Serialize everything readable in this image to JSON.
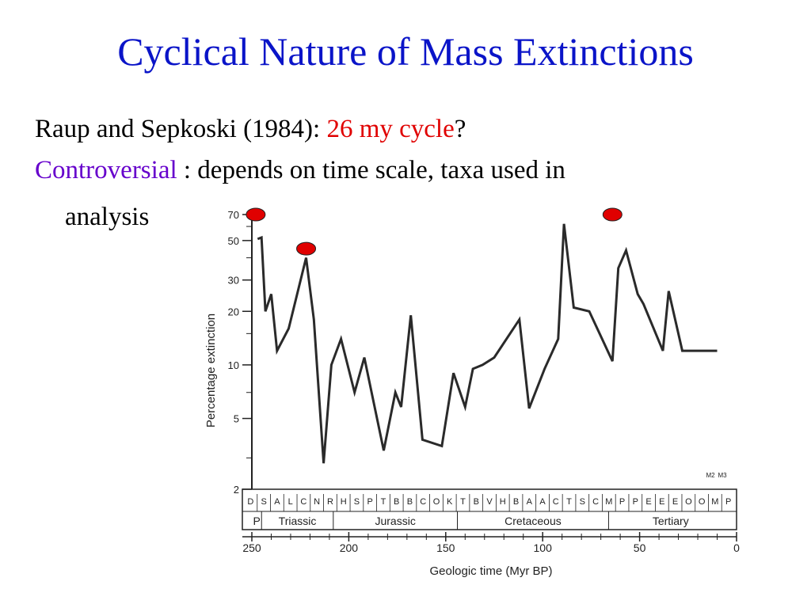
{
  "slide": {
    "title": "Cyclical Nature of Mass Extinctions",
    "line1_prefix": "Raup and Sepkoski (1984): ",
    "line1_highlight": "26 my cycle",
    "line1_suffix": "?",
    "line2_highlight": "Controversial",
    "line2_rest": " : depends on time scale, taxa used in",
    "line3": "analysis"
  },
  "colors": {
    "title": "#0a14c8",
    "highlight_red": "#e00000",
    "highlight_purple": "#6600cc",
    "marker": "#e00000"
  },
  "chart_data": {
    "type": "line",
    "xlabel": "Geologic time (Myr BP)",
    "ylabel": "Percentage extinction",
    "y_scale": "log",
    "xlim": [
      250,
      0
    ],
    "ylim": [
      2,
      70
    ],
    "x_ticks": [
      250,
      200,
      150,
      100,
      50,
      0
    ],
    "y_ticks": [
      70,
      50,
      30,
      20,
      10,
      5,
      2
    ],
    "series": [
      {
        "x": [
          247,
          245,
          243,
          240,
          237,
          231,
          222,
          218,
          213,
          209,
          204,
          197,
          192,
          182,
          176,
          173,
          168,
          162,
          152,
          146,
          140,
          136,
          131,
          125,
          112,
          107,
          99,
          92,
          89,
          84,
          76,
          64,
          61,
          57,
          51,
          48,
          38,
          35,
          28,
          18,
          16,
          13,
          10
        ],
        "y": [
          51,
          52,
          20,
          25,
          12,
          16,
          40,
          18,
          2.8,
          10,
          14,
          7,
          11,
          3.3,
          7,
          5.8,
          19,
          3.8,
          3.5,
          9,
          5.8,
          9.5,
          10,
          11,
          18,
          5.7,
          9.5,
          14,
          62,
          21,
          20,
          10.5,
          35,
          44,
          25,
          22,
          12,
          26,
          12,
          12,
          12,
          12,
          12
        ]
      }
    ],
    "peaks_marked": [
      {
        "x": 248,
        "y": 70
      },
      {
        "x": 222,
        "y": 45
      },
      {
        "x": 64,
        "y": 70
      }
    ],
    "stage_labels": [
      "D",
      "S",
      "A",
      "L",
      "C",
      "N",
      "R",
      "H",
      "S",
      "P",
      "T",
      "B",
      "B",
      "C",
      "O",
      "K",
      "T",
      "B",
      "V",
      "H",
      "B",
      "A",
      "A",
      "C",
      "T",
      "S",
      "C",
      "M",
      "P",
      "P",
      "E",
      "E",
      "E",
      "O",
      "O",
      "M",
      "P"
    ],
    "small_labels": [
      "M2",
      "M3"
    ],
    "periods": [
      {
        "name": "P",
        "from": 250,
        "to": 245
      },
      {
        "name": "Triassic",
        "from": 245,
        "to": 208
      },
      {
        "name": "Jurassic",
        "from": 208,
        "to": 144
      },
      {
        "name": "Cretaceous",
        "from": 144,
        "to": 66
      },
      {
        "name": "Tertiary",
        "from": 66,
        "to": 2
      }
    ]
  }
}
